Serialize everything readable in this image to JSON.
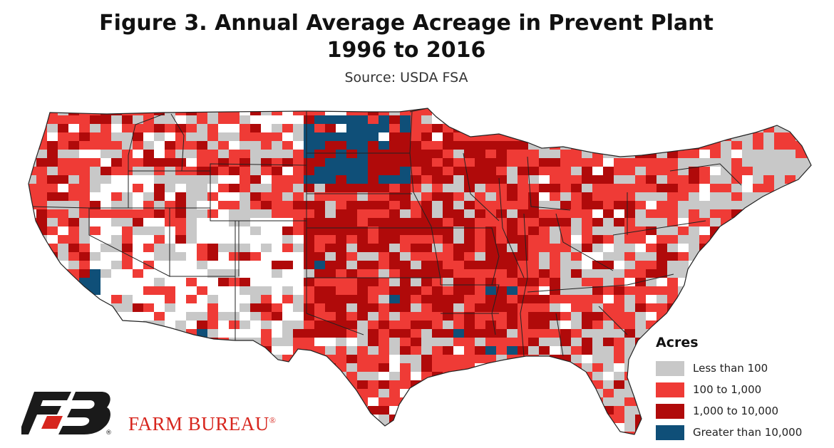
{
  "title_line1": "Figure 3. Annual Average Acreage in Prevent Plant",
  "title_line2": "1996 to 2016",
  "source": "Source: USDA FSA",
  "legend": {
    "title": "Acres",
    "items": [
      {
        "label": "Less than 100",
        "color": "#c8c8c8"
      },
      {
        "label": "100 to 1,000",
        "color": "#ef3b36"
      },
      {
        "label": "1,000 to 10,000",
        "color": "#b00a0a"
      },
      {
        "label": "Greater than 10,000",
        "color": "#0f4f78"
      }
    ]
  },
  "brand": {
    "name": "FARM BUREAU",
    "mark": "®",
    "color": "#d7261e",
    "logo_color": "#1a1a1a"
  },
  "colors": {
    "none": "#ffffff",
    "border": "#222222"
  }
}
